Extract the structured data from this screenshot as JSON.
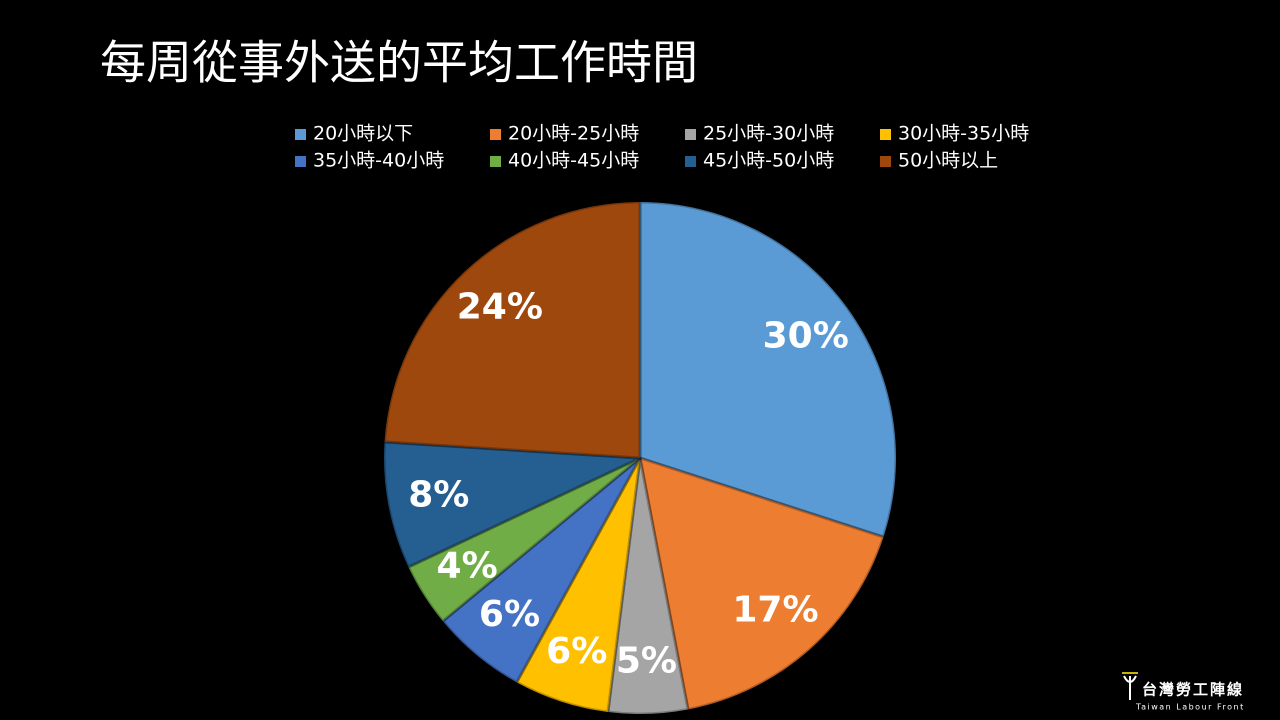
{
  "chart_data": {
    "type": "pie",
    "title": "每周從事外送的平均工作時間",
    "categories": [
      "20小時以下",
      "20小時-25小時",
      "25小時-30小時",
      "30小時-35小時",
      "35小時-40小時",
      "40小時-45小時",
      "45小時-50小時",
      "50小時以上"
    ],
    "values": [
      30,
      17,
      5,
      6,
      6,
      4,
      8,
      24
    ],
    "value_labels": [
      "30%",
      "17%",
      "5%",
      "6%",
      "6%",
      "4%",
      "8%",
      "24%"
    ],
    "colors": [
      "#5b9bd5",
      "#ed7d31",
      "#a5a5a5",
      "#ffc000",
      "#4472c4",
      "#70ad47",
      "#255e91",
      "#9e480e"
    ],
    "legend": "top"
  },
  "logo": {
    "name": "台灣勞工陣線",
    "subtitle": "Taiwan Labour Front"
  }
}
